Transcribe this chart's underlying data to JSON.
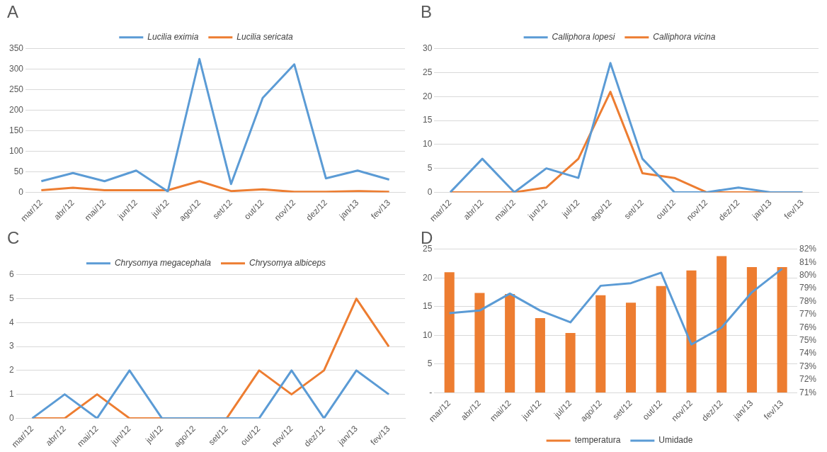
{
  "chart_data": [
    {
      "type": "line",
      "title": "A",
      "categories": [
        "mar/12",
        "abr/12",
        "mai/12",
        "jun/12",
        "jul/12",
        "ago/12",
        "set/12",
        "out/12",
        "nov/12",
        "dez/12",
        "jan/13",
        "fev/13"
      ],
      "series": [
        {
          "name": "Lucilia eximia",
          "color": "#5b9bd5",
          "values": [
            27,
            47,
            27,
            53,
            2,
            325,
            20,
            230,
            312,
            34,
            53,
            31
          ]
        },
        {
          "name": "Lucilia sericata",
          "color": "#ed7d31",
          "values": [
            5,
            11,
            5,
            5,
            5,
            27,
            3,
            7,
            1,
            1,
            3,
            1
          ]
        }
      ],
      "ylim": [
        0,
        350
      ],
      "yticks": [
        0,
        50,
        100,
        150,
        200,
        250,
        300,
        350
      ],
      "grid": "y",
      "legend": "top"
    },
    {
      "type": "line",
      "title": "B",
      "categories": [
        "mar/12",
        "abr/12",
        "mai/12",
        "jun/12",
        "jul/12",
        "ago/12",
        "set/12",
        "out/12",
        "nov/12",
        "dez/12",
        "jan/13",
        "fev/13"
      ],
      "series": [
        {
          "name": "Calliphora lopesi",
          "color": "#5b9bd5",
          "values": [
            0,
            7,
            0,
            5,
            3,
            27,
            7,
            0,
            0,
            1,
            0,
            0
          ]
        },
        {
          "name": "Calliphora vicina",
          "color": "#ed7d31",
          "values": [
            0,
            0,
            0,
            1,
            7,
            21,
            4,
            3,
            0,
            0,
            0,
            0
          ]
        }
      ],
      "ylim": [
        0,
        30
      ],
      "yticks": [
        0,
        5,
        10,
        15,
        20,
        25,
        30
      ],
      "grid": "y",
      "legend": "top"
    },
    {
      "type": "line",
      "title": "C",
      "categories": [
        "mar/12",
        "abr/12",
        "mai/12",
        "jun/12",
        "jul/12",
        "ago/12",
        "set/12",
        "out/12",
        "nov/12",
        "dez/12",
        "jan/13",
        "fev/13"
      ],
      "series": [
        {
          "name": "Chrysomya megacephala",
          "color": "#5b9bd5",
          "values": [
            0,
            1,
            0,
            2,
            0,
            0,
            0,
            0,
            2,
            0,
            2,
            1
          ]
        },
        {
          "name": "Chrysomya albiceps",
          "color": "#ed7d31",
          "values": [
            0,
            0,
            1,
            0,
            0,
            0,
            0,
            2,
            1,
            2,
            5,
            3
          ]
        }
      ],
      "ylim": [
        0,
        6
      ],
      "yticks": [
        0,
        1,
        2,
        3,
        4,
        5,
        6
      ],
      "grid": "y",
      "legend": "top"
    },
    {
      "type": "bar",
      "title": "D",
      "categories": [
        "mar/12",
        "abr/12",
        "mai/12",
        "jun/12",
        "jul/12",
        "ago/12",
        "set/12",
        "out/12",
        "nov/12",
        "dez/12",
        "jan/13",
        "fev/13"
      ],
      "series": [
        {
          "name": "temperatura",
          "color": "#ed7d31",
          "values": [
            21,
            17.4,
            17.2,
            13,
            10.4,
            17,
            15.7,
            18.6,
            21.3,
            23.8,
            21.9,
            21.9
          ]
        },
        {
          "name": "Umidade",
          "type": "line",
          "axis": "y2",
          "color": "#5b9bd5",
          "values": [
            77.1,
            77.3,
            78.6,
            77.3,
            76.4,
            79.2,
            79.4,
            80.2,
            74.7,
            76.0,
            78.7,
            80.5
          ]
        }
      ],
      "ylim": [
        0,
        25
      ],
      "yticks": [
        {
          "value": 0,
          "label": "-"
        },
        5,
        10,
        15,
        20,
        25
      ],
      "y2lim": [
        71,
        82
      ],
      "y2ticks": [
        {
          "value": 71,
          "label": "71%"
        },
        {
          "value": 72,
          "label": "72%"
        },
        {
          "value": 73,
          "label": "73%"
        },
        {
          "value": 74,
          "label": "74%"
        },
        {
          "value": 75,
          "label": "75%"
        },
        {
          "value": 76,
          "label": "76%"
        },
        {
          "value": 77,
          "label": "77%"
        },
        {
          "value": 78,
          "label": "78%"
        },
        {
          "value": 79,
          "label": "79%"
        },
        {
          "value": 80,
          "label": "80%"
        },
        {
          "value": 81,
          "label": "81%"
        },
        {
          "value": 82,
          "label": "82%"
        }
      ],
      "grid": "y",
      "legend": "bottom"
    }
  ]
}
